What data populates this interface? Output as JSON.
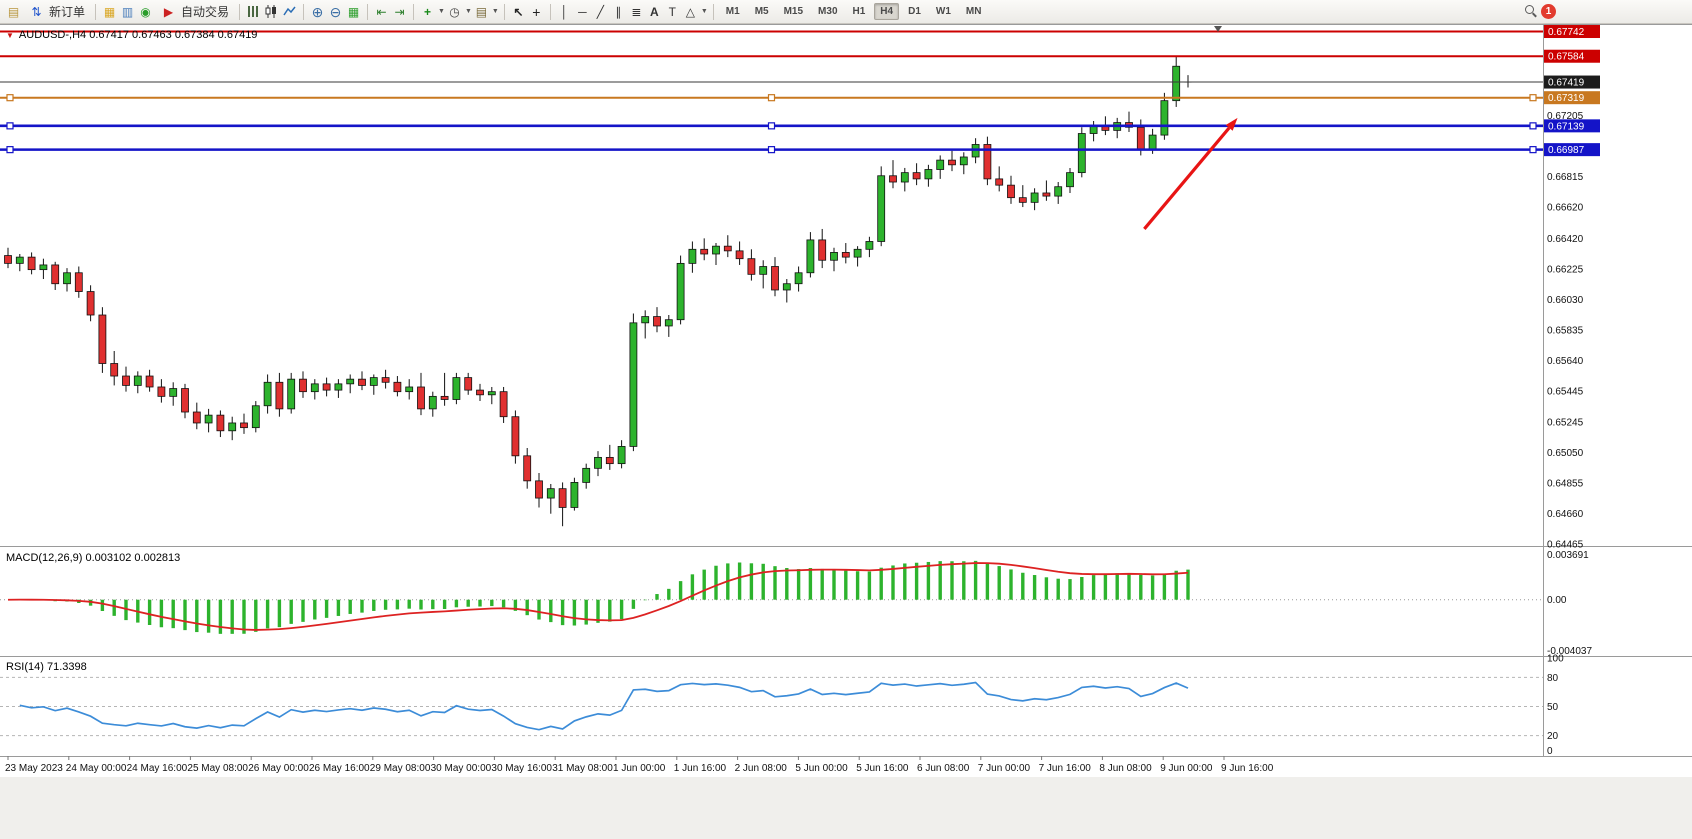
{
  "toolbar": {
    "new_order_label": "新订单",
    "auto_trading_label": "自动交易",
    "timeframes": [
      {
        "label": "M1",
        "active": false
      },
      {
        "label": "M5",
        "active": false
      },
      {
        "label": "M15",
        "active": false
      },
      {
        "label": "M30",
        "active": false
      },
      {
        "label": "H1",
        "active": false
      },
      {
        "label": "H4",
        "active": true
      },
      {
        "label": "D1",
        "active": false
      },
      {
        "label": "W1",
        "active": false
      },
      {
        "label": "MN",
        "active": false
      }
    ],
    "notification_badge": "1"
  },
  "chart": {
    "title": "AUDUSD-,H4 0.67417 0.67463 0.67384 0.67419",
    "symbol": "AUDUSD-",
    "timeframe": "H4",
    "open": "0.67417",
    "high": "0.67463",
    "low": "0.67384",
    "close": "0.67419"
  },
  "indicators": {
    "macd": {
      "label": "MACD(12,26,9) 0.003102 0.002813",
      "value_main": "0.003102",
      "value_signal": "0.002813",
      "scale_ticks": [
        "0.003691",
        "0.00",
        "-0.004037"
      ]
    },
    "rsi": {
      "label": "RSI(14) 71.3398",
      "value": "71.3398",
      "scale_ticks": [
        "100",
        "80",
        "50",
        "20",
        "0"
      ]
    }
  },
  "chart_data": {
    "type": "candlestick",
    "title": "AUDUSD- H4",
    "up_color": "#2db32d",
    "down_color": "#e03030",
    "y_axis": {
      "min": 0.6446,
      "max": 0.6779,
      "visible_ticks": [
        0.67205,
        0.66815,
        0.6662,
        0.6642,
        0.66225,
        0.6603,
        0.65835,
        0.6564,
        0.65445,
        0.65245,
        0.6505,
        0.64855,
        0.6466,
        0.64465
      ]
    },
    "x_labels": [
      "23 May 2023",
      "24 May 00:00",
      "24 May 16:00",
      "25 May 08:00",
      "26 May 00:00",
      "26 May 16:00",
      "29 May 08:00",
      "30 May 00:00",
      "30 May 16:00",
      "31 May 08:00",
      "1 Jun 00:00",
      "1 Jun 16:00",
      "2 Jun 08:00",
      "5 Jun 00:00",
      "5 Jun 16:00",
      "6 Jun 08:00",
      "7 Jun 00:00",
      "7 Jun 16:00",
      "8 Jun 08:00",
      "9 Jun 00:00",
      "9 Jun 16:00"
    ],
    "candles": [
      [
        0.6631,
        0.6636,
        0.6623,
        0.6626
      ],
      [
        0.6626,
        0.6632,
        0.6621,
        0.663
      ],
      [
        0.663,
        0.6633,
        0.6619,
        0.6622
      ],
      [
        0.6622,
        0.6629,
        0.6616,
        0.6625
      ],
      [
        0.6625,
        0.6627,
        0.6609,
        0.6613
      ],
      [
        0.6613,
        0.6623,
        0.6608,
        0.662
      ],
      [
        0.662,
        0.6624,
        0.6604,
        0.6608
      ],
      [
        0.6608,
        0.6612,
        0.6589,
        0.6593
      ],
      [
        0.6593,
        0.6598,
        0.6556,
        0.6562
      ],
      [
        0.6562,
        0.657,
        0.6548,
        0.6554
      ],
      [
        0.6554,
        0.656,
        0.6544,
        0.6548
      ],
      [
        0.6548,
        0.6557,
        0.6543,
        0.6554
      ],
      [
        0.6554,
        0.6558,
        0.6544,
        0.6547
      ],
      [
        0.6547,
        0.6552,
        0.6537,
        0.6541
      ],
      [
        0.6541,
        0.655,
        0.6535,
        0.6546
      ],
      [
        0.6546,
        0.6549,
        0.6527,
        0.6531
      ],
      [
        0.6531,
        0.6537,
        0.652,
        0.6524
      ],
      [
        0.6524,
        0.6533,
        0.6518,
        0.6529
      ],
      [
        0.6529,
        0.6532,
        0.6515,
        0.6519
      ],
      [
        0.6519,
        0.6528,
        0.6513,
        0.6524
      ],
      [
        0.6524,
        0.653,
        0.6517,
        0.6521
      ],
      [
        0.6521,
        0.6538,
        0.6518,
        0.6535
      ],
      [
        0.6535,
        0.6555,
        0.653,
        0.655
      ],
      [
        0.655,
        0.6556,
        0.6528,
        0.6533
      ],
      [
        0.6533,
        0.6556,
        0.653,
        0.6552
      ],
      [
        0.6552,
        0.6557,
        0.654,
        0.6544
      ],
      [
        0.6544,
        0.6552,
        0.6539,
        0.6549
      ],
      [
        0.6549,
        0.6553,
        0.6541,
        0.6545
      ],
      [
        0.6545,
        0.6552,
        0.654,
        0.6549
      ],
      [
        0.6549,
        0.6555,
        0.6543,
        0.6552
      ],
      [
        0.6552,
        0.6557,
        0.6545,
        0.6548
      ],
      [
        0.6548,
        0.6555,
        0.6542,
        0.6553
      ],
      [
        0.6553,
        0.6558,
        0.6546,
        0.655
      ],
      [
        0.655,
        0.6554,
        0.6541,
        0.6544
      ],
      [
        0.6544,
        0.6552,
        0.6539,
        0.6547
      ],
      [
        0.6547,
        0.6556,
        0.6529,
        0.6533
      ],
      [
        0.6533,
        0.6544,
        0.6528,
        0.6541
      ],
      [
        0.6541,
        0.6556,
        0.6535,
        0.6539
      ],
      [
        0.6539,
        0.6556,
        0.6536,
        0.6553
      ],
      [
        0.6553,
        0.6556,
        0.6542,
        0.6545
      ],
      [
        0.6545,
        0.6549,
        0.6538,
        0.6542
      ],
      [
        0.6542,
        0.6547,
        0.6536,
        0.6544
      ],
      [
        0.6544,
        0.6547,
        0.6524,
        0.6528
      ],
      [
        0.6528,
        0.6532,
        0.6498,
        0.6503
      ],
      [
        0.6503,
        0.6508,
        0.6482,
        0.6487
      ],
      [
        0.6487,
        0.6492,
        0.647,
        0.6476
      ],
      [
        0.6476,
        0.6485,
        0.6466,
        0.6482
      ],
      [
        0.6482,
        0.6486,
        0.6458,
        0.647
      ],
      [
        0.647,
        0.6489,
        0.6468,
        0.6486
      ],
      [
        0.6486,
        0.6498,
        0.6482,
        0.6495
      ],
      [
        0.6495,
        0.6506,
        0.649,
        0.6502
      ],
      [
        0.6502,
        0.651,
        0.6494,
        0.6498
      ],
      [
        0.6498,
        0.6513,
        0.6495,
        0.6509
      ],
      [
        0.6509,
        0.6594,
        0.6506,
        0.6588
      ],
      [
        0.6588,
        0.6596,
        0.6578,
        0.6592
      ],
      [
        0.6592,
        0.6598,
        0.6582,
        0.6586
      ],
      [
        0.6586,
        0.6593,
        0.6579,
        0.659
      ],
      [
        0.659,
        0.6631,
        0.6587,
        0.6626
      ],
      [
        0.6626,
        0.664,
        0.662,
        0.6635
      ],
      [
        0.6635,
        0.6642,
        0.6628,
        0.6632
      ],
      [
        0.6632,
        0.6639,
        0.6625,
        0.6637
      ],
      [
        0.6637,
        0.6644,
        0.663,
        0.6634
      ],
      [
        0.6634,
        0.664,
        0.6625,
        0.6629
      ],
      [
        0.6629,
        0.6635,
        0.6615,
        0.6619
      ],
      [
        0.6619,
        0.6628,
        0.661,
        0.6624
      ],
      [
        0.6624,
        0.663,
        0.6605,
        0.6609
      ],
      [
        0.6609,
        0.6616,
        0.6601,
        0.6613
      ],
      [
        0.6613,
        0.6624,
        0.6608,
        0.662
      ],
      [
        0.662,
        0.6646,
        0.6617,
        0.6641
      ],
      [
        0.6641,
        0.6648,
        0.6623,
        0.6628
      ],
      [
        0.6628,
        0.6636,
        0.6621,
        0.6633
      ],
      [
        0.6633,
        0.6639,
        0.6626,
        0.663
      ],
      [
        0.663,
        0.6637,
        0.6624,
        0.6635
      ],
      [
        0.6635,
        0.6643,
        0.663,
        0.664
      ],
      [
        0.664,
        0.6688,
        0.6637,
        0.6682
      ],
      [
        0.6682,
        0.6692,
        0.6674,
        0.6678
      ],
      [
        0.6678,
        0.6687,
        0.6672,
        0.6684
      ],
      [
        0.6684,
        0.669,
        0.6676,
        0.668
      ],
      [
        0.668,
        0.6689,
        0.6675,
        0.6686
      ],
      [
        0.6686,
        0.6695,
        0.668,
        0.6692
      ],
      [
        0.6692,
        0.6698,
        0.6685,
        0.6689
      ],
      [
        0.6689,
        0.6697,
        0.6683,
        0.6694
      ],
      [
        0.6694,
        0.6706,
        0.669,
        0.6702
      ],
      [
        0.6702,
        0.6707,
        0.6676,
        0.668
      ],
      [
        0.668,
        0.6688,
        0.6672,
        0.6676
      ],
      [
        0.6676,
        0.6682,
        0.6664,
        0.6668
      ],
      [
        0.6668,
        0.6676,
        0.6662,
        0.6665
      ],
      [
        0.6665,
        0.6674,
        0.666,
        0.6671
      ],
      [
        0.6671,
        0.6679,
        0.6666,
        0.6669
      ],
      [
        0.6669,
        0.6678,
        0.6664,
        0.6675
      ],
      [
        0.6675,
        0.6687,
        0.6671,
        0.6684
      ],
      [
        0.6684,
        0.6713,
        0.6681,
        0.6709
      ],
      [
        0.6709,
        0.6717,
        0.6704,
        0.6714
      ],
      [
        0.6714,
        0.672,
        0.6708,
        0.6711
      ],
      [
        0.6711,
        0.6719,
        0.6706,
        0.6716
      ],
      [
        0.6716,
        0.6723,
        0.671,
        0.6713
      ],
      [
        0.6713,
        0.6718,
        0.6695,
        0.6699
      ],
      [
        0.6699,
        0.6712,
        0.6696,
        0.6708
      ],
      [
        0.6708,
        0.6735,
        0.6705,
        0.673
      ],
      [
        0.673,
        0.67584,
        0.6726,
        0.6752
      ],
      [
        0.67417,
        0.67463,
        0.67384,
        0.67419
      ]
    ],
    "price_lines": [
      {
        "price": 0.67742,
        "color": "#cc0000",
        "width": 2,
        "label": "0.67742",
        "label_bg": "#cc0000",
        "handles": false
      },
      {
        "price": 0.67584,
        "color": "#cc0000",
        "width": 2,
        "label": "0.67584",
        "label_bg": "#cc0000",
        "handles": false
      },
      {
        "price": 0.67419,
        "color": "#3a3a3a",
        "width": 1,
        "label": "0.67419",
        "label_bg": "#1c1c1c",
        "handles": false,
        "role": "current-price"
      },
      {
        "price": 0.67319,
        "color": "#c87820",
        "width": 2,
        "label": "0.67319",
        "label_bg": "#c87820",
        "handles": true
      },
      {
        "price": 0.67139,
        "color": "#1414c8",
        "width": 2.6,
        "label": "0.67139",
        "label_bg": "#1414c8",
        "handles": true
      },
      {
        "price": 0.66987,
        "color": "#1414c8",
        "width": 2.6,
        "label": "0.66987",
        "label_bg": "#1414c8",
        "handles": true
      }
    ],
    "annotations": [
      {
        "type": "arrow",
        "color": "#e81414",
        "from_index": 96.3,
        "from_price": 0.6648,
        "to_index": 104.2,
        "to_price": 0.6719
      }
    ],
    "indicators": [
      {
        "type": "bar",
        "name": "MACD",
        "params": [
          12,
          26,
          9
        ],
        "hist_color": "#2db32d",
        "line_color": "#dd2222",
        "y_min": -0.004037,
        "y_max": 0.003691
      },
      {
        "type": "line",
        "name": "RSI",
        "params": [
          14
        ],
        "color": "#3c8cd8",
        "levels": [
          80,
          50,
          20
        ],
        "y_min": 0,
        "y_max": 100
      }
    ]
  }
}
